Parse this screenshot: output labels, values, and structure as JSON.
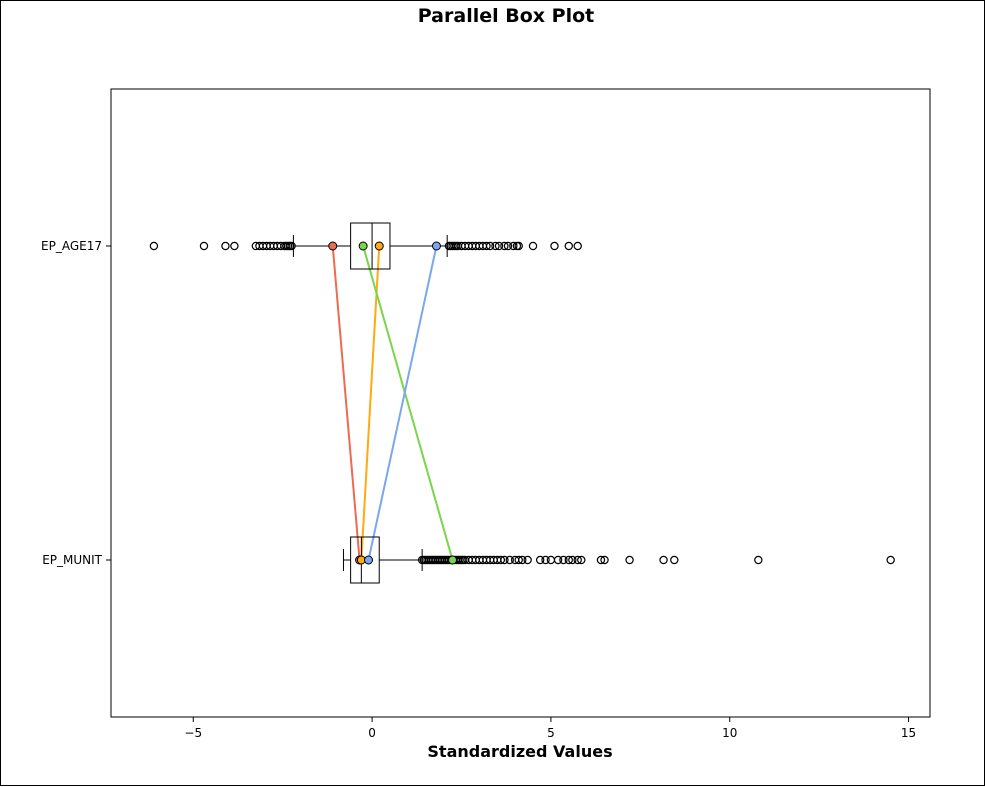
{
  "chart_data": {
    "type": "box",
    "orientation": "horizontal",
    "title": "Parallel Box Plot",
    "xlabel": "Standardized Values",
    "ylabel": "",
    "xlim": [
      -7.3,
      15.6
    ],
    "xticks": [
      -5,
      0,
      5,
      10,
      15
    ],
    "categories": [
      "EP_MUNIT",
      "EP_AGE17"
    ],
    "boxes": [
      {
        "name": "EP_MUNIT",
        "whisker_low": -0.8,
        "q1": -0.6,
        "median": -0.3,
        "q3": 0.2,
        "whisker_high": 1.4,
        "outliers": [
          1.4,
          1.45,
          1.5,
          1.55,
          1.6,
          1.65,
          1.7,
          1.75,
          1.8,
          1.85,
          1.9,
          1.95,
          2.0,
          2.05,
          2.1,
          2.15,
          2.2,
          2.25,
          2.3,
          2.35,
          2.4,
          2.45,
          2.5,
          2.55,
          2.6,
          2.7,
          2.8,
          2.9,
          3.0,
          3.1,
          3.2,
          3.3,
          3.4,
          3.5,
          3.6,
          3.7,
          3.85,
          4.0,
          4.1,
          4.2,
          4.35,
          4.7,
          4.85,
          5.0,
          5.2,
          5.35,
          5.5,
          5.6,
          5.75,
          5.85,
          6.4,
          6.5,
          7.2,
          8.15,
          8.45,
          10.8,
          14.5
        ]
      },
      {
        "name": "EP_AGE17",
        "whisker_low": -2.2,
        "q1": -0.6,
        "median": 0.0,
        "q3": 0.5,
        "whisker_high": 2.1,
        "outliers": [
          -6.1,
          -4.7,
          -4.1,
          -3.85,
          -3.25,
          -3.15,
          -3.05,
          -2.95,
          -2.85,
          -2.75,
          -2.65,
          -2.55,
          -2.45,
          -2.4,
          -2.35,
          -2.3,
          -2.25,
          2.15,
          2.2,
          2.25,
          2.3,
          2.35,
          2.4,
          2.5,
          2.6,
          2.7,
          2.8,
          2.9,
          3.0,
          3.1,
          3.2,
          3.3,
          3.45,
          3.55,
          3.7,
          3.8,
          3.95,
          4.05,
          4.1,
          4.5,
          5.1,
          5.5,
          5.75
        ]
      }
    ],
    "links": [
      {
        "color": "#ee6a50",
        "values": {
          "EP_AGE17": -1.1,
          "EP_MUNIT": -0.35
        }
      },
      {
        "color": "#ffaa11",
        "values": {
          "EP_AGE17": 0.2,
          "EP_MUNIT": -0.3
        }
      },
      {
        "color": "#78d64b",
        "values": {
          "EP_AGE17": -0.25,
          "EP_MUNIT": 2.25
        }
      },
      {
        "color": "#7ba7ec",
        "values": {
          "EP_AGE17": 1.8,
          "EP_MUNIT": -0.1
        }
      }
    ],
    "grid": false,
    "legend": "none"
  }
}
